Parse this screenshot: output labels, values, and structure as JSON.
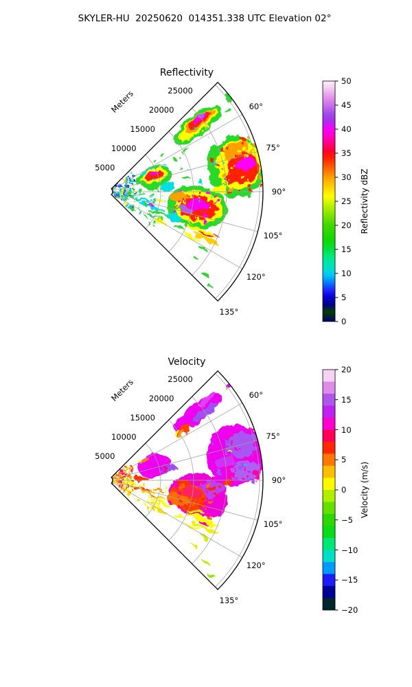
{
  "figure_title": "SKYLER-HU  20250620  014351.338 UTC Elevation 02°",
  "colormap_stops": [
    [
      0.0,
      "#000070"
    ],
    [
      0.04,
      "#004000"
    ],
    [
      0.07,
      "#000088"
    ],
    [
      0.1,
      "#0000d0"
    ],
    [
      0.13,
      "#2222ff"
    ],
    [
      0.16,
      "#0077ff"
    ],
    [
      0.19,
      "#00c0f8"
    ],
    [
      0.21,
      "#00d8d8"
    ],
    [
      0.24,
      "#00e4b0"
    ],
    [
      0.27,
      "#00e880"
    ],
    [
      0.3,
      "#00e040"
    ],
    [
      0.34,
      "#10d800"
    ],
    [
      0.4,
      "#40d800"
    ],
    [
      0.44,
      "#78e400"
    ],
    [
      0.48,
      "#b8f000"
    ],
    [
      0.52,
      "#ffff00"
    ],
    [
      0.56,
      "#ffd000"
    ],
    [
      0.6,
      "#ffa000"
    ],
    [
      0.64,
      "#ff6000"
    ],
    [
      0.68,
      "#ff2000"
    ],
    [
      0.71,
      "#ff0030"
    ],
    [
      0.74,
      "#ff0080"
    ],
    [
      0.77,
      "#ff00c8"
    ],
    [
      0.8,
      "#f800f8"
    ],
    [
      0.83,
      "#b428f0"
    ],
    [
      0.86,
      "#9b48e8"
    ],
    [
      0.89,
      "#c464ea"
    ],
    [
      0.93,
      "#e092ea"
    ],
    [
      0.97,
      "#f4ccf2"
    ],
    [
      1.0,
      "#fdf0fc"
    ]
  ],
  "chart_data": [
    {
      "type": "heatmap",
      "variant": "radar-sector-ppi",
      "title": "Reflectivity",
      "radial_axis_label": "Meters",
      "radial_tick_labels": [
        "5000",
        "10000",
        "15000",
        "20000",
        "25000"
      ],
      "radial_ticks_m": [
        5000,
        10000,
        15000,
        20000,
        25000
      ],
      "azimuth_tick_labels": [
        "60°",
        "75°",
        "90°",
        "105°",
        "120°",
        "135°"
      ],
      "azimuth_ticks_deg": [
        60,
        75,
        90,
        105,
        120,
        135
      ],
      "azimuth_span_deg": [
        45,
        135
      ],
      "range_max_m": 25500,
      "colorbar": {
        "label": "Reflectivity dBZ",
        "min": 0,
        "max": 50,
        "stepped": false,
        "tick_labels": [
          "50",
          "45",
          "40",
          "35",
          "30",
          "25",
          "20",
          "15",
          "10",
          "5",
          "0"
        ]
      },
      "echo_regions": [
        {
          "a": 53,
          "r": 19000,
          "da": 10,
          "dr": 9000,
          "c": "#2ad82a"
        },
        {
          "a": 53,
          "r": 19000,
          "da": 7.5,
          "dr": 7200,
          "c": "#ffff00"
        },
        {
          "a": 52.5,
          "r": 19300,
          "da": 6,
          "dr": 5600,
          "c": "#ffa000"
        },
        {
          "a": 52,
          "r": 19500,
          "da": 4.6,
          "dr": 4200,
          "c": "#ff2000"
        },
        {
          "a": 51.2,
          "r": 19800,
          "da": 2.8,
          "dr": 2600,
          "c": "#fa00fa"
        },
        {
          "a": 50.6,
          "r": 20200,
          "da": 1.4,
          "dr": 1200,
          "c": "#b05df0"
        },
        {
          "a": 52,
          "r": 25300,
          "da": 1.6,
          "dr": 1400,
          "c": "#2ad82a"
        },
        {
          "a": 56,
          "r": 24000,
          "da": 0.8,
          "dr": 700,
          "c": "#2ad82a"
        },
        {
          "a": 79,
          "r": 21800,
          "da": 27,
          "dr": 8800,
          "c": "#2ad82a"
        },
        {
          "a": 78,
          "r": 22300,
          "da": 21,
          "dr": 6800,
          "c": "#ffff00"
        },
        {
          "a": 72,
          "r": 22500,
          "da": 7,
          "dr": 4200,
          "c": "#ffa000"
        },
        {
          "a": 80,
          "r": 22800,
          "da": 13,
          "dr": 5000,
          "c": "#ff2000"
        },
        {
          "k": "s",
          "a": 79,
          "r": 22000,
          "da": 22,
          "dr": 7000,
          "n": 70,
          "sz": 3,
          "cs": [
            "#ff2000",
            "#ffff00",
            "#ffa000"
          ]
        },
        {
          "a": 78.5,
          "r": 23200,
          "da": 5.5,
          "dr": 3200,
          "c": "#fa00fa"
        },
        {
          "a": 84,
          "r": 21000,
          "da": 4,
          "dr": 2400,
          "c": "#ff2000"
        },
        {
          "a": 89,
          "r": 19000,
          "da": 4,
          "dr": 2600,
          "c": "#ffff00"
        },
        {
          "a": 100,
          "r": 15800,
          "da": 27,
          "dr": 9000,
          "c": "#2ad82a"
        },
        {
          "a": 100,
          "r": 15800,
          "da": 22,
          "dr": 7200,
          "c": "#ffff00"
        },
        {
          "a": 100,
          "r": 16000,
          "da": 16,
          "dr": 5400,
          "c": "#ff2000"
        },
        {
          "k": "s",
          "a": 100,
          "r": 15500,
          "da": 20,
          "dr": 6500,
          "n": 50,
          "sz": 3,
          "cs": [
            "#ff2000",
            "#ffff00",
            "#fa00fa"
          ]
        },
        {
          "a": 98.5,
          "r": 15800,
          "da": 7,
          "dr": 3400,
          "c": "#fa00fa"
        },
        {
          "a": 102.5,
          "r": 14200,
          "da": 4,
          "dr": 2200,
          "c": "#b05df0"
        },
        {
          "a": 94,
          "r": 12800,
          "da": 7,
          "dr": 2600,
          "c": "#ffa000"
        },
        {
          "a": 111,
          "r": 12800,
          "da": 5,
          "dr": 2800,
          "c": "#00e0e0"
        },
        {
          "a": 72,
          "r": 9400,
          "da": 27,
          "dr": 5200,
          "c": "#2ad82a"
        },
        {
          "a": 62,
          "r": 8600,
          "da": 7,
          "dr": 2400,
          "c": "#00e0e0"
        },
        {
          "a": 85,
          "r": 11200,
          "da": 7,
          "dr": 2200,
          "c": "#00e0e0"
        },
        {
          "a": 71,
          "r": 9400,
          "da": 19,
          "dr": 4000,
          "c": "#ffff00"
        },
        {
          "a": 70,
          "r": 9400,
          "da": 12,
          "dr": 3000,
          "c": "#ff2000"
        },
        {
          "a": 67.5,
          "r": 9600,
          "da": 4.5,
          "dr": 1700,
          "c": "#fa00fa"
        },
        {
          "a": 65,
          "r": 11000,
          "da": 2.5,
          "dr": 800,
          "c": "#c8c8c8"
        },
        {
          "a": 96,
          "r": 5200,
          "da": 3.5,
          "dr": 2600,
          "c": "#2ad82a"
        },
        {
          "a": 94,
          "r": 3600,
          "da": 2.5,
          "dr": 1400,
          "c": "#00e0e0"
        },
        {
          "a": 80,
          "r": 14000,
          "da": 2,
          "dr": 1100,
          "c": "#2ad82a"
        },
        {
          "a": 84,
          "r": 16000,
          "da": 1.5,
          "dr": 900,
          "c": "#00e0e0"
        },
        {
          "a": 109,
          "r": 9000,
          "da": 3,
          "dr": 4400,
          "c": "#00e0e0"
        },
        {
          "a": 113,
          "r": 10500,
          "da": 2.6,
          "dr": 3600,
          "c": "#2ad82a"
        },
        {
          "a": 105,
          "r": 7400,
          "da": 3,
          "dr": 2800,
          "c": "#00e0e0"
        },
        {
          "a": 117.5,
          "r": 9600,
          "da": 2,
          "dr": 2400,
          "c": "#2ad82a"
        },
        {
          "a": 108,
          "r": 8800,
          "da": 1.2,
          "dr": 1200,
          "c": "#fa00fa"
        },
        {
          "a": 120.5,
          "r": 11400,
          "da": 2,
          "dr": 2000,
          "c": "#ffff00"
        },
        {
          "a": 104,
          "r": 12800,
          "da": 2,
          "dr": 2200,
          "c": "#2ad82a"
        },
        {
          "a": 124,
          "r": 9000,
          "da": 1.4,
          "dr": 1400,
          "c": "#2ad82a"
        },
        {
          "a": 101,
          "r": 9800,
          "da": 1.5,
          "dr": 1600,
          "c": "#ffff00"
        },
        {
          "a": 113,
          "r": 17500,
          "da": 2.4,
          "dr": 5200,
          "c": "#ffff00"
        },
        {
          "a": 116,
          "r": 18500,
          "da": 2,
          "dr": 4200,
          "c": "#ffd000"
        },
        {
          "a": 110,
          "r": 16200,
          "da": 1.8,
          "dr": 3000,
          "c": "#2ad82a"
        },
        {
          "a": 114,
          "r": 18200,
          "da": 1.2,
          "dr": 2000,
          "c": "#ff2000"
        },
        {
          "a": 112,
          "r": 19800,
          "da": 0.9,
          "dr": 1300,
          "c": "#fa00fa"
        },
        {
          "a": 118.5,
          "r": 16500,
          "da": 1.6,
          "dr": 2600,
          "c": "#ffff00"
        },
        {
          "a": 121,
          "r": 19000,
          "da": 1.4,
          "dr": 2000,
          "c": "#2ad82a"
        },
        {
          "a": 117,
          "r": 14200,
          "da": 1.6,
          "dr": 1800,
          "c": "#2ad82a"
        },
        {
          "a": 130.5,
          "r": 21500,
          "da": 1.6,
          "dr": 1500,
          "c": "#2ad82a"
        },
        {
          "a": 128,
          "r": 18500,
          "da": 1.2,
          "dr": 1100,
          "c": "#2ad82a"
        },
        {
          "a": 133,
          "r": 23200,
          "da": 1,
          "dr": 900,
          "c": "#2ad82a"
        },
        {
          "k": "s",
          "a": 90,
          "r": 4200,
          "da": 78,
          "dr": 5200,
          "n": 240,
          "sz": 2,
          "cs": [
            "#2050ff",
            "#00c8ff",
            "#2ad82a",
            "#00e6a8",
            "#ffff00",
            "#0000d0"
          ]
        },
        {
          "k": "s",
          "a": 108,
          "r": 7500,
          "da": 40,
          "dr": 7000,
          "n": 60,
          "sz": 2,
          "cs": [
            "#00c8ff",
            "#2ad82a"
          ]
        },
        {
          "k": "s",
          "a": 75,
          "r": 15000,
          "da": 45,
          "dr": 12000,
          "n": 30,
          "sz": 2,
          "cs": [
            "#2ad82a",
            "#00e0e0"
          ]
        }
      ]
    },
    {
      "type": "heatmap",
      "variant": "radar-sector-ppi",
      "title": "Velocity",
      "radial_axis_label": "Meters",
      "radial_tick_labels": [
        "5000",
        "10000",
        "15000",
        "20000",
        "25000"
      ],
      "radial_ticks_m": [
        5000,
        10000,
        15000,
        20000,
        25000
      ],
      "azimuth_tick_labels": [
        "60°",
        "75°",
        "90°",
        "105°",
        "120°",
        "135°"
      ],
      "azimuth_ticks_deg": [
        60,
        75,
        90,
        105,
        120,
        135
      ],
      "azimuth_span_deg": [
        45,
        135
      ],
      "range_max_m": 25500,
      "colorbar": {
        "label": "Velocity (m/s)",
        "min": -20,
        "max": 20,
        "stepped": true,
        "tick_labels": [
          "20",
          "15",
          "10",
          "5",
          "0",
          "−5",
          "−10",
          "−15",
          "−20"
        ]
      },
      "echo_regions": [
        {
          "a": 53,
          "r": 19000,
          "da": 9.5,
          "dr": 8800,
          "c": "#f000f0"
        },
        {
          "a": 55,
          "r": 20000,
          "da": 4.5,
          "dr": 4600,
          "c": "#a050f0"
        },
        {
          "a": 50.5,
          "r": 21500,
          "da": 3,
          "dr": 3000,
          "c": "#e040f8"
        },
        {
          "a": 56.5,
          "r": 15800,
          "da": 3.5,
          "dr": 2400,
          "c": "#ff4000"
        },
        {
          "a": 57.2,
          "r": 15200,
          "da": 2,
          "dr": 1300,
          "c": "#ffa000"
        },
        {
          "a": 55,
          "r": 14800,
          "da": 1.4,
          "dr": 900,
          "c": "#ffff00"
        },
        {
          "a": 52,
          "r": 25300,
          "da": 1.6,
          "dr": 1400,
          "c": "#f000f0"
        },
        {
          "a": 52.5,
          "r": 24700,
          "da": 0.7,
          "dr": 600,
          "c": "#70e000"
        },
        {
          "a": 79,
          "r": 21800,
          "da": 27,
          "dr": 8800,
          "c": "#ee00ee"
        },
        {
          "a": 75,
          "r": 22800,
          "da": 10,
          "dr": 5200,
          "c": "#a855f2"
        },
        {
          "a": 86,
          "r": 22800,
          "da": 9,
          "dr": 4200,
          "c": "#b060f0"
        },
        {
          "k": "s",
          "a": 80,
          "r": 22000,
          "da": 22,
          "dr": 7000,
          "n": 80,
          "sz": 3,
          "cs": [
            "#a050f0",
            "#ee00ee",
            "#ff00c0"
          ]
        },
        {
          "a": 81,
          "r": 20000,
          "da": 6,
          "dr": 2800,
          "c": "#d030f8"
        },
        {
          "a": 90.5,
          "r": 19800,
          "da": 4,
          "dr": 2200,
          "c": "#ff3000"
        },
        {
          "a": 87,
          "r": 24500,
          "da": 2,
          "dr": 1200,
          "c": "#ff00a0"
        },
        {
          "a": 84,
          "r": 22800,
          "da": 0.9,
          "dr": 700,
          "c": "#00d0ff"
        },
        {
          "a": 77,
          "r": 21000,
          "da": 0.8,
          "dr": 600,
          "c": "#ffff00"
        },
        {
          "a": 89,
          "r": 19000,
          "da": 4,
          "dr": 2600,
          "c": "#ee00ee"
        },
        {
          "a": 100,
          "r": 16000,
          "da": 27,
          "dr": 9000,
          "c": "#f000d8"
        },
        {
          "a": 95,
          "r": 17800,
          "da": 9,
          "dr": 3800,
          "c": "#c040f0"
        },
        {
          "a": 103,
          "r": 14500,
          "da": 19,
          "dr": 5200,
          "c": "#ff4000"
        },
        {
          "a": 106,
          "r": 13200,
          "da": 11,
          "dr": 3600,
          "c": "#ff7000"
        },
        {
          "k": "s",
          "a": 100,
          "r": 15500,
          "da": 22,
          "dr": 7000,
          "n": 60,
          "sz": 3,
          "cs": [
            "#ff2000",
            "#ff00a0",
            "#ff7000"
          ]
        },
        {
          "a": 98,
          "r": 14800,
          "da": 6,
          "dr": 2600,
          "c": "#ff2060"
        },
        {
          "a": 92,
          "r": 13500,
          "da": 4,
          "dr": 2000,
          "c": "#ff3000"
        },
        {
          "a": 72,
          "r": 9400,
          "da": 27,
          "dr": 5200,
          "c": "#f000f0"
        },
        {
          "a": 80,
          "r": 11300,
          "da": 6,
          "dr": 2600,
          "c": "#9b50f0"
        },
        {
          "a": 88,
          "r": 7000,
          "da": 8,
          "dr": 2000,
          "c": "#ff3000"
        },
        {
          "a": 61,
          "r": 8400,
          "da": 4,
          "dr": 1500,
          "c": "#ff8000"
        },
        {
          "a": 57.5,
          "r": 7600,
          "da": 2,
          "dr": 800,
          "c": "#ffff00"
        },
        {
          "a": 80,
          "r": 10800,
          "da": 3,
          "dr": 1200,
          "c": "#ff00a0"
        },
        {
          "a": 96,
          "r": 5200,
          "da": 3.5,
          "dr": 2600,
          "c": "#ffff00"
        },
        {
          "a": 94,
          "r": 3700,
          "da": 2.5,
          "dr": 1400,
          "c": "#ffc000"
        },
        {
          "a": 104,
          "r": 7200,
          "da": 6,
          "dr": 3600,
          "c": "#ff3000"
        },
        {
          "a": 108.5,
          "r": 9200,
          "da": 3,
          "dr": 4200,
          "c": "#ffd000"
        },
        {
          "a": 113,
          "r": 10500,
          "da": 2.6,
          "dr": 3600,
          "c": "#ffff00"
        },
        {
          "a": 105,
          "r": 7400,
          "da": 2,
          "dr": 2000,
          "c": "#ff8000"
        },
        {
          "a": 117.5,
          "r": 9600,
          "da": 2,
          "dr": 2400,
          "c": "#ffff00"
        },
        {
          "a": 108,
          "r": 8800,
          "da": 1,
          "dr": 1000,
          "c": "#fa00fa"
        },
        {
          "a": 120.5,
          "r": 11400,
          "da": 2,
          "dr": 2000,
          "c": "#ffe000"
        },
        {
          "a": 124,
          "r": 9000,
          "da": 1.4,
          "dr": 1400,
          "c": "#ffff00"
        },
        {
          "a": 101,
          "r": 9800,
          "da": 1.5,
          "dr": 1600,
          "c": "#ff9000"
        },
        {
          "a": 113,
          "r": 17500,
          "da": 2.4,
          "dr": 5200,
          "c": "#ffff00"
        },
        {
          "a": 116,
          "r": 18500,
          "da": 2,
          "dr": 4200,
          "c": "#f0f000"
        },
        {
          "a": 110,
          "r": 16200,
          "da": 1.8,
          "dr": 3000,
          "c": "#e0f000"
        },
        {
          "a": 114,
          "r": 18200,
          "da": 1,
          "dr": 1500,
          "c": "#ff00a0"
        },
        {
          "a": 118.5,
          "r": 16500,
          "da": 1.6,
          "dr": 2600,
          "c": "#ffff00"
        },
        {
          "a": 121,
          "r": 19000,
          "da": 1.4,
          "dr": 2000,
          "c": "#d0f000"
        },
        {
          "a": 117,
          "r": 14200,
          "da": 1.6,
          "dr": 1800,
          "c": "#ffff00"
        },
        {
          "a": 130.5,
          "r": 21500,
          "da": 1.6,
          "dr": 1500,
          "c": "#b8f000"
        },
        {
          "a": 128,
          "r": 18500,
          "da": 1.2,
          "dr": 1100,
          "c": "#e0f000"
        },
        {
          "a": 133,
          "r": 23200,
          "da": 1,
          "dr": 900,
          "c": "#90e800"
        },
        {
          "k": "s",
          "a": 88,
          "r": 3800,
          "da": 72,
          "dr": 4600,
          "n": 220,
          "sz": 2,
          "cs": [
            "#ffff00",
            "#ffa500",
            "#ff3000",
            "#ff0080",
            "#ffe000"
          ]
        },
        {
          "k": "s",
          "a": 112,
          "r": 8000,
          "da": 35,
          "dr": 6000,
          "n": 50,
          "sz": 2,
          "cs": [
            "#ffff00",
            "#ffd000"
          ]
        }
      ]
    }
  ]
}
